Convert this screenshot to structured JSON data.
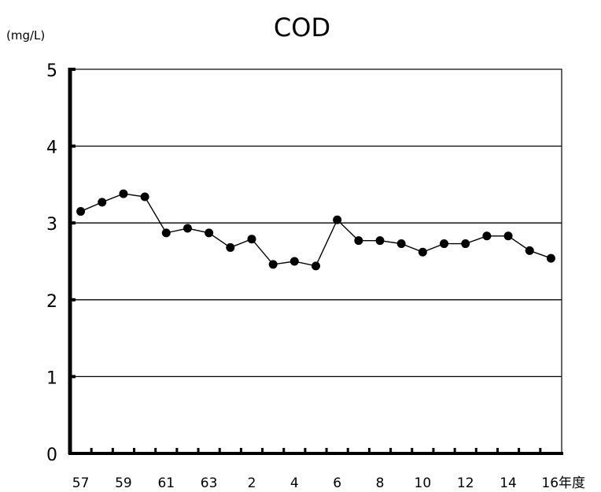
{
  "chart_data": {
    "type": "line",
    "title": "COD",
    "unit_label": "(mg/L)",
    "x_unit": "年度",
    "categories": [
      "57",
      "58",
      "59",
      "60",
      "61",
      "62",
      "63",
      "1",
      "2",
      "3",
      "4",
      "5",
      "6",
      "7",
      "8",
      "9",
      "10",
      "11",
      "12",
      "13",
      "14",
      "15",
      "16"
    ],
    "tick_labels_shown": [
      "57",
      "59",
      "61",
      "63",
      "2",
      "4",
      "6",
      "8",
      "10",
      "12",
      "14",
      "16年度"
    ],
    "series": [
      {
        "values": [
          3.15,
          3.27,
          3.38,
          3.34,
          2.87,
          2.93,
          2.87,
          2.68,
          2.79,
          2.46,
          2.5,
          2.44,
          3.04,
          2.77,
          2.77,
          2.73,
          2.62,
          2.73,
          2.73,
          2.83,
          2.83,
          2.64,
          2.54
        ]
      }
    ],
    "ylim": [
      0,
      5
    ],
    "yticks": [
      "0",
      "1",
      "2",
      "3",
      "4",
      "5"
    ],
    "grid": true,
    "legend": "none",
    "line_color": "#000000",
    "marker_color": "#000000"
  }
}
